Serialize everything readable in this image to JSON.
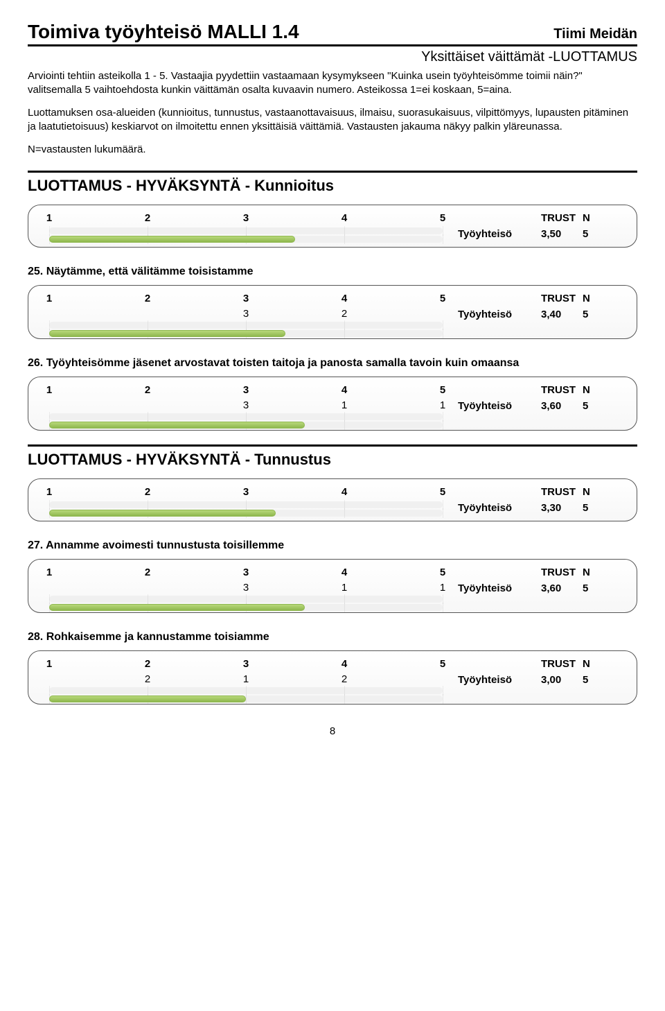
{
  "header": {
    "title": "Toimiva työyhteisö MALLI 1.4",
    "team": "Tiimi Meidän",
    "subtitle": "Yksittäiset väittämät -LUOTTAMUS"
  },
  "intro": {
    "p1": "Arviointi tehtiin asteikolla 1 - 5. Vastaajia pyydettiin vastaamaan kysymykseen \"Kuinka usein työyhteisömme toimii näin?\" valitsemalla 5 vaihtoehdosta kunkin väittämän osalta kuvaavin numero. Asteikossa 1=ei koskaan, 5=aina.",
    "p2": "Luottamuksen osa-alueiden (kunnioitus, tunnustus, vastaanottavaisuus, ilmaisu, suorasukaisuus, vilpittömyys, lupausten pitäminen ja laatutietoisuus) keskiarvot on ilmoitettu ennen yksittäisiä väittämiä. Vastausten jakauma näkyy palkin yläreunassa.",
    "p3": "N=vastausten lukumäärä."
  },
  "columns": {
    "trust": "TRUST",
    "n": "N"
  },
  "row_label": "Työyhteisö",
  "scale": {
    "ticks": [
      1,
      2,
      3,
      4,
      5
    ],
    "min": 1,
    "max": 5
  },
  "colors": {
    "bar_fill": "#b8d87a",
    "bar_border": "#8fb84f",
    "track": "#f0f0f0",
    "grid": "rgba(0,0,0,0.06)"
  },
  "sections": [
    {
      "title": "LUOTTAMUS - HYVÄKSYNTÄ - Kunnioitus",
      "charts": [
        {
          "value": 3.5,
          "value_str": "3,50",
          "n": 5,
          "dist": null
        }
      ]
    },
    {
      "question": "25. Näytämme, että välitämme toisistamme",
      "charts": [
        {
          "value": 3.4,
          "value_str": "3,40",
          "n": 5,
          "dist": [
            null,
            null,
            3,
            2,
            null
          ]
        }
      ]
    },
    {
      "question": "26. Työyhteisömme jäsenet arvostavat toisten taitoja ja panosta samalla tavoin kuin omaansa",
      "charts": [
        {
          "value": 3.6,
          "value_str": "3,60",
          "n": 5,
          "dist": [
            null,
            null,
            3,
            1,
            1
          ]
        }
      ]
    },
    {
      "title": "LUOTTAMUS - HYVÄKSYNTÄ - Tunnustus",
      "charts": [
        {
          "value": 3.3,
          "value_str": "3,30",
          "n": 5,
          "dist": null
        }
      ]
    },
    {
      "question": "27. Annamme avoimesti tunnustusta toisillemme",
      "charts": [
        {
          "value": 3.6,
          "value_str": "3,60",
          "n": 5,
          "dist": [
            null,
            null,
            3,
            1,
            1
          ]
        }
      ]
    },
    {
      "question": "28. Rohkaisemme ja kannustamme toisiamme",
      "charts": [
        {
          "value": 3.0,
          "value_str": "3,00",
          "n": 5,
          "dist": [
            null,
            2,
            1,
            2,
            null
          ]
        }
      ]
    }
  ],
  "page_number": "8"
}
